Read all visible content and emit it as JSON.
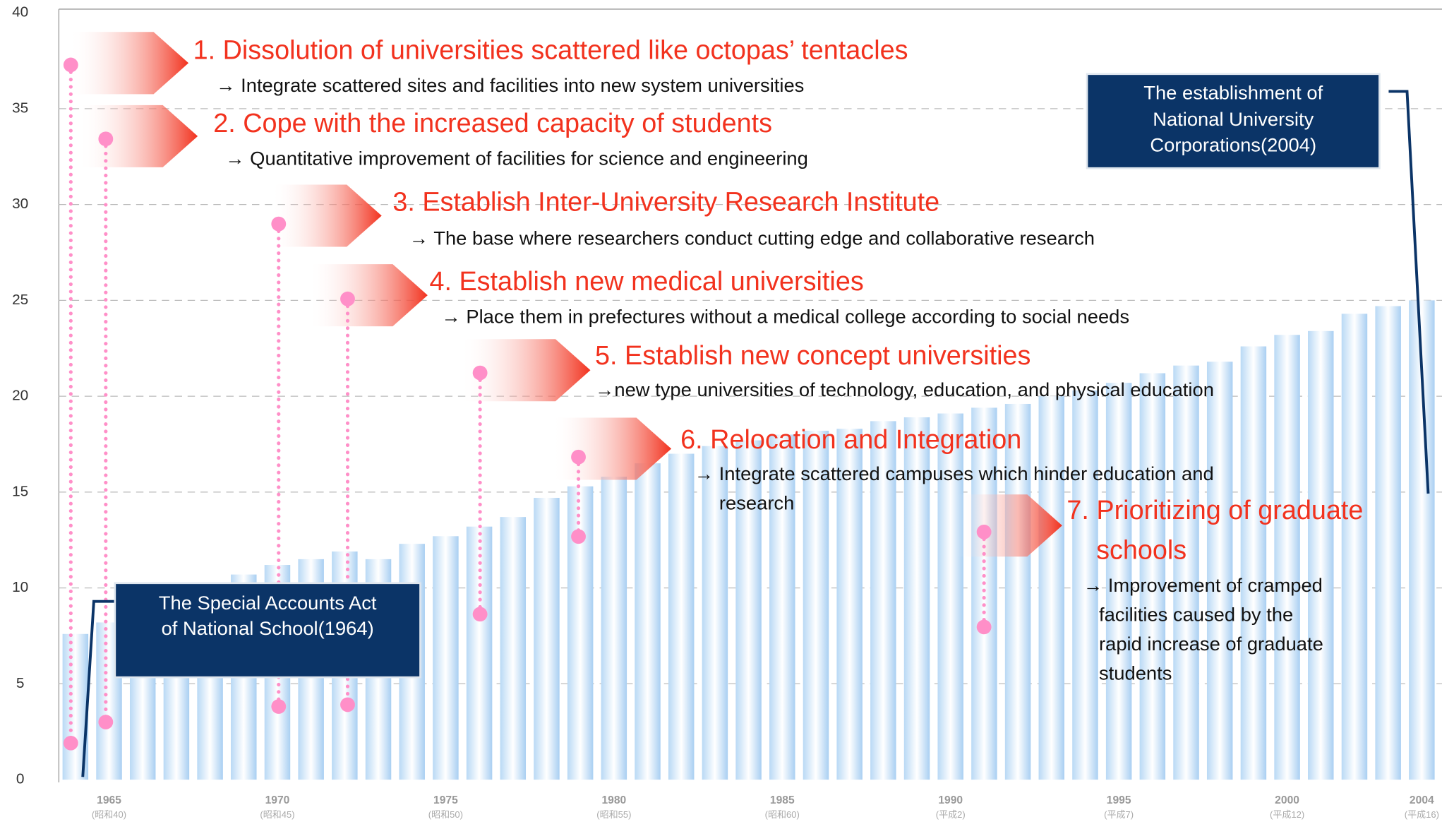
{
  "chart_data": {
    "type": "bar",
    "categories": [
      "",
      "1965",
      null,
      null,
      null,
      null,
      "1970",
      null,
      null,
      null,
      null,
      "1975",
      null,
      null,
      null,
      null,
      "1980",
      null,
      null,
      null,
      null,
      "1985",
      null,
      null,
      null,
      null,
      "1990",
      null,
      null,
      null,
      null,
      "1995",
      null,
      null,
      null,
      null,
      "2000",
      null,
      null,
      null,
      "2004"
    ],
    "category_sublabels": [
      null,
      "(昭和40)",
      null,
      null,
      null,
      null,
      "(昭和45)",
      null,
      null,
      null,
      null,
      "(昭和50)",
      null,
      null,
      null,
      null,
      "(昭和55)",
      null,
      null,
      null,
      null,
      "(昭和60)",
      null,
      null,
      null,
      null,
      "(平成2)",
      null,
      null,
      null,
      null,
      "(平成7)",
      null,
      null,
      null,
      null,
      "(平成12)",
      null,
      null,
      null,
      "(平成16)"
    ],
    "values": [
      7.6,
      8.2,
      9.0,
      9.5,
      10.0,
      10.7,
      11.2,
      11.5,
      11.9,
      11.5,
      12.3,
      12.7,
      13.2,
      13.7,
      14.7,
      15.3,
      15.8,
      16.5,
      17.0,
      17.4,
      17.7,
      18.0,
      18.2,
      18.3,
      18.7,
      18.9,
      19.1,
      19.4,
      19.6,
      20.0,
      20.3,
      20.7,
      21.2,
      21.6,
      21.8,
      22.6,
      23.2,
      23.4,
      24.3,
      24.7,
      25.0
    ],
    "ylim": [
      0,
      40
    ],
    "yticks": [
      0,
      5,
      10,
      15,
      20,
      25,
      30,
      35,
      40
    ],
    "grid": true,
    "annotations": [
      {
        "title": [
          "1. Dissolution of universities scattered like octopas’ tentacles"
        ],
        "text": [
          "→ Integrate scattered sites and facilities into new system universities"
        ]
      },
      {
        "title": [
          "2. Cope with the increased capacity of students"
        ],
        "text": [
          "→ Quantitative improvement of facilities for science and engineering"
        ]
      },
      {
        "title": [
          "3. Establish Inter-University Research Institute"
        ],
        "text": [
          "→ The base where researchers conduct cutting edge and collaborative research"
        ]
      },
      {
        "title": [
          "4. Establish new medical universities"
        ],
        "text": [
          "→ Place them in prefectures without a medical college according to social needs"
        ]
      },
      {
        "title": [
          "5. Establish new concept universities"
        ],
        "text": [
          "→new type universities of technology, education, and physical education"
        ]
      },
      {
        "title": [
          "6. Relocation and Integration"
        ],
        "text": [
          "→ Integrate scattered campuses which hinder education and",
          "research"
        ]
      },
      {
        "title": [
          "7. Prioritizing of graduate",
          "schools"
        ],
        "text": [
          "→ Improvement of cramped",
          "facilities caused by the",
          "rapid increase of graduate",
          "students"
        ]
      }
    ],
    "boxes": [
      [
        "The Special Accounts Act",
        "of National School(1964)"
      ],
      [
        "The establishment of",
        "National University",
        "Corporations(2004)"
      ]
    ]
  }
}
